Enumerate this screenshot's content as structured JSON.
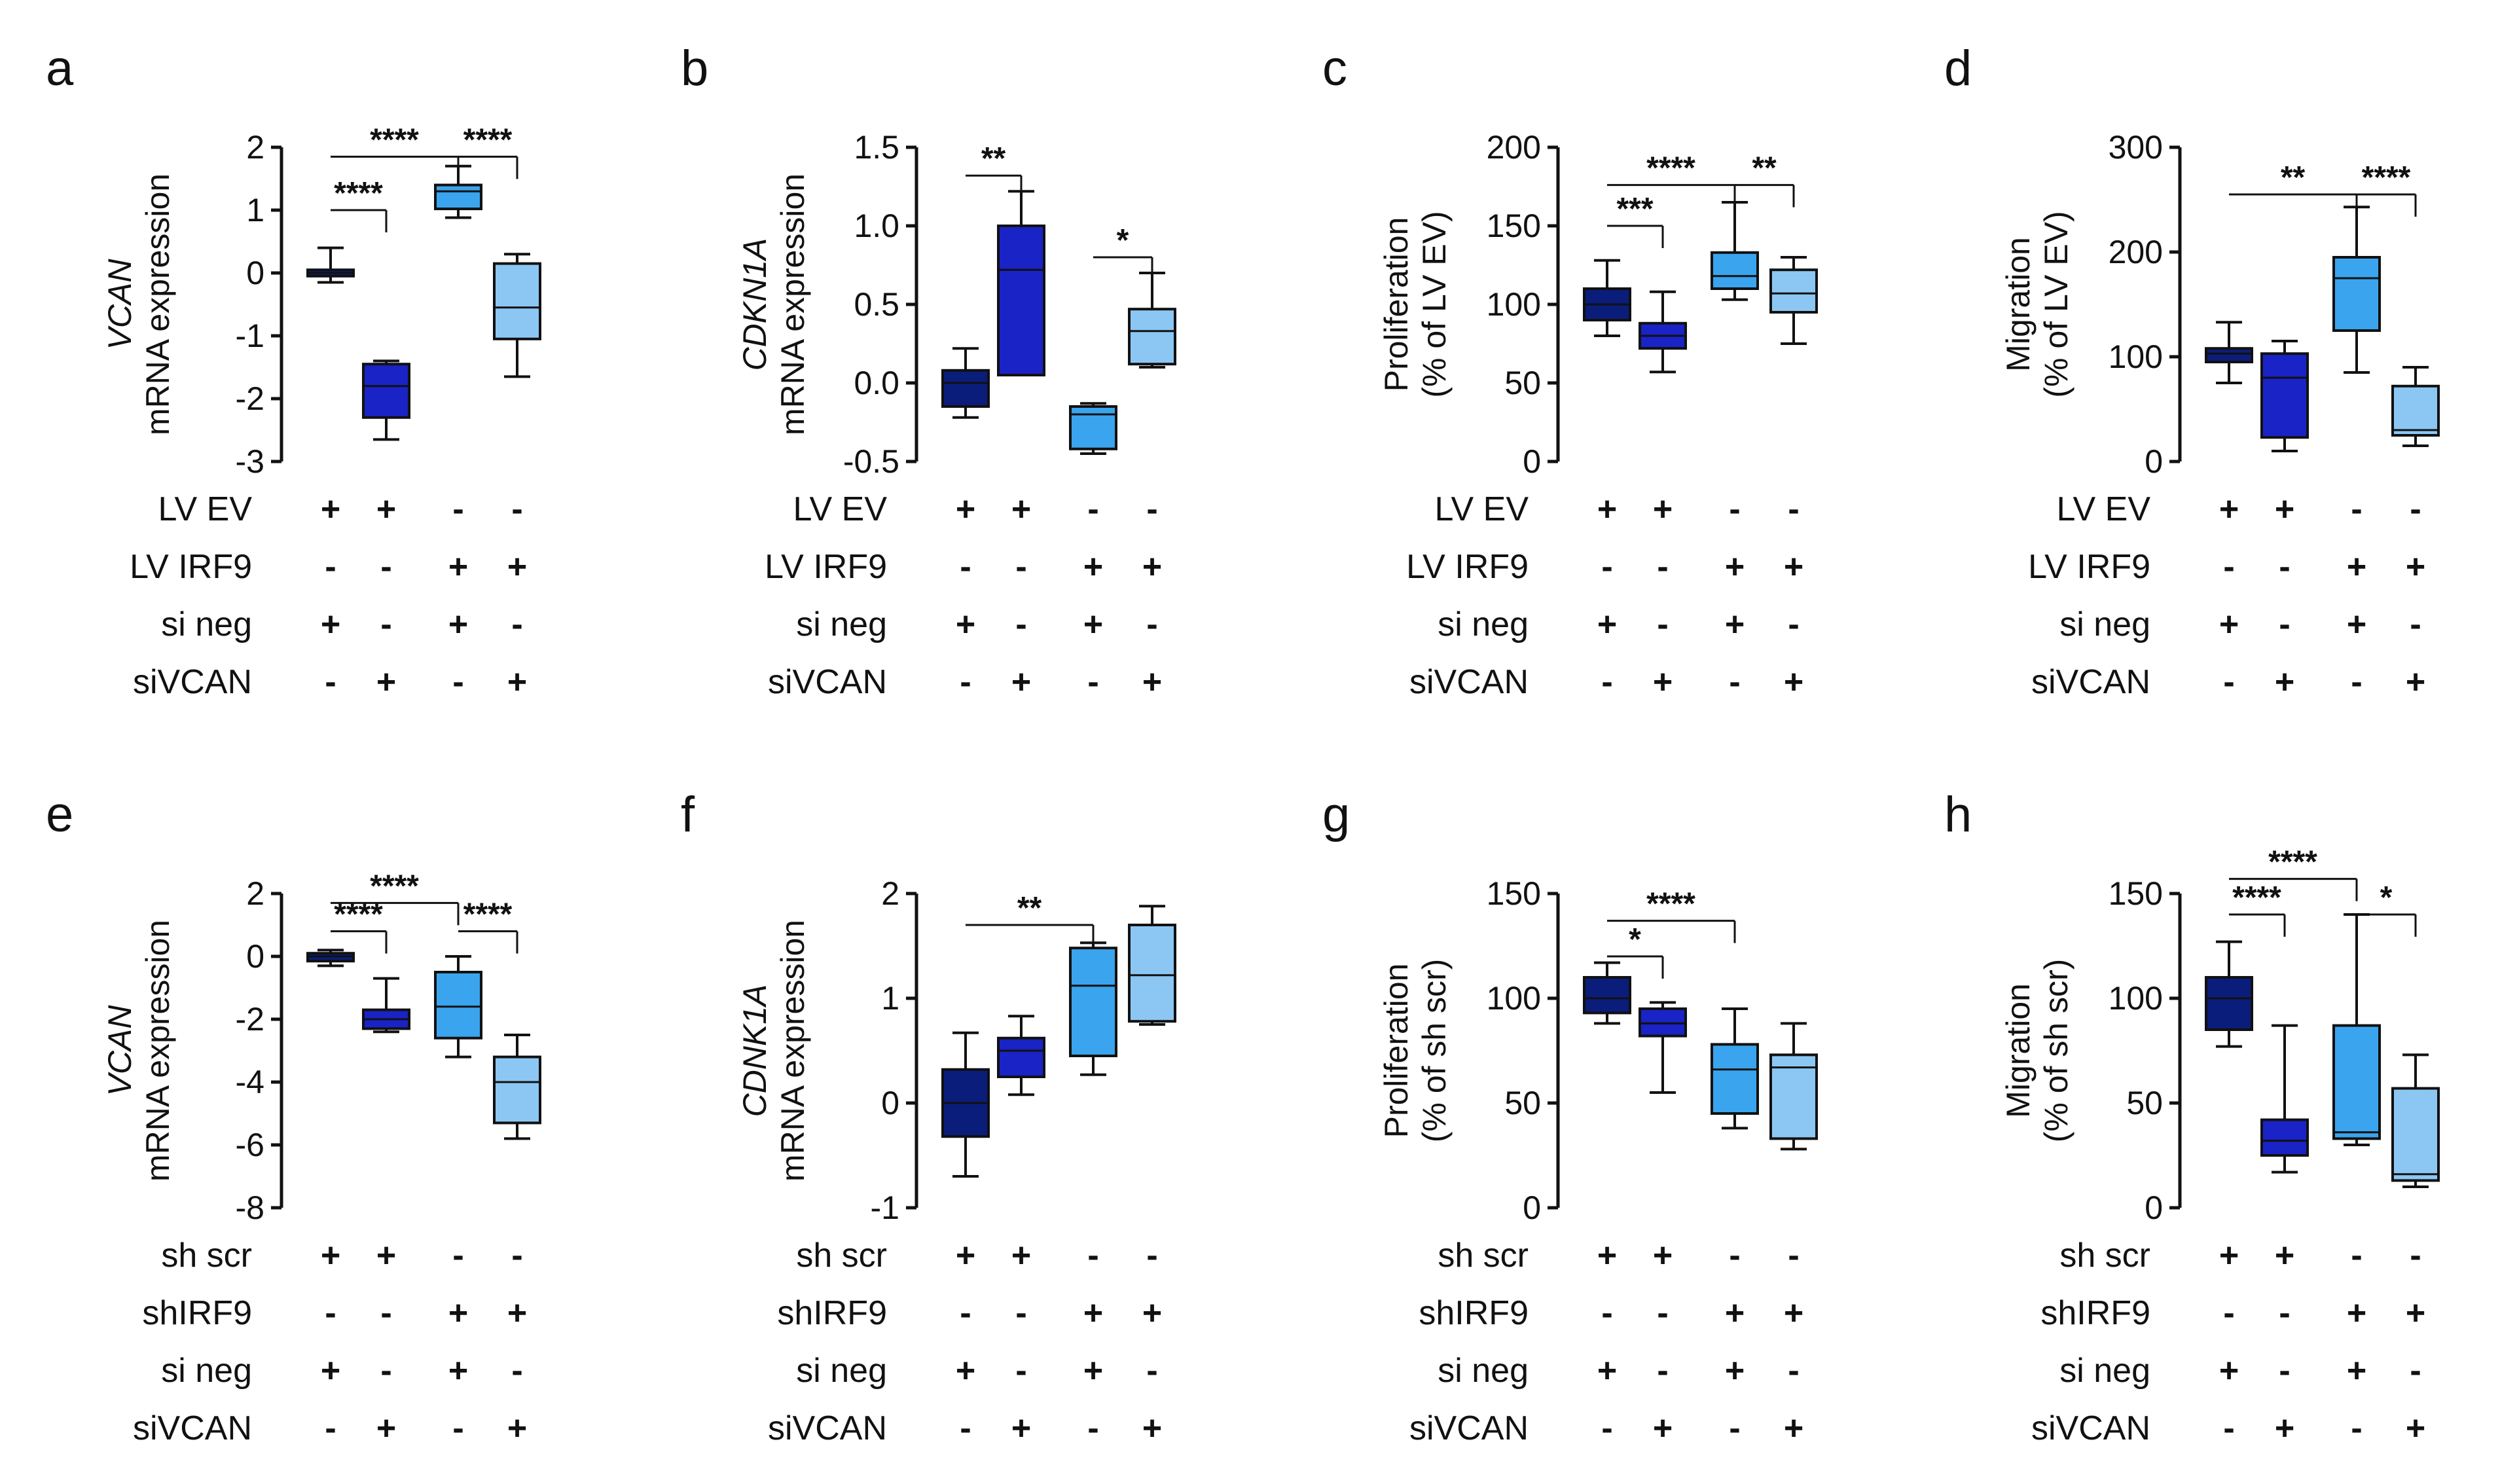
{
  "colors": {
    "c1": "#0b1d7a",
    "c2": "#1a23c6",
    "c3": "#3aa4ee",
    "c4": "#8cc7f4",
    "axis": "#111111"
  },
  "panels": [
    {
      "letter": "a",
      "ylabel": [
        "VCAN",
        "mRNA expression"
      ],
      "ylabel_italic_first": true,
      "ylim": [
        -3,
        2
      ],
      "ticks": [
        2,
        1,
        0,
        -1,
        -2,
        -3
      ],
      "tick_labels": [
        "2",
        "1",
        "0",
        "-1",
        "-2",
        "-3"
      ],
      "boxes": [
        {
          "min": -0.15,
          "q1": -0.05,
          "med": 0.0,
          "q3": 0.05,
          "max": 0.4
        },
        {
          "min": -2.65,
          "q1": -2.3,
          "med": -1.8,
          "q3": -1.45,
          "max": -1.4
        },
        {
          "min": 0.88,
          "q1": 1.02,
          "med": 1.3,
          "q3": 1.4,
          "max": 1.7
        },
        {
          "min": -1.65,
          "q1": -1.05,
          "med": -0.55,
          "q3": 0.15,
          "max": 0.3
        }
      ],
      "brackets": [
        {
          "from": 0,
          "to": 1,
          "level": 1.0,
          "label": "****"
        },
        {
          "from": 0,
          "to": 2,
          "level": 1.85,
          "label": "****"
        },
        {
          "from": 2,
          "to": 3,
          "level": 1.85,
          "label": "****"
        }
      ],
      "rows": [
        {
          "label": "LV EV",
          "signs": [
            "+",
            "+",
            "-",
            "-"
          ]
        },
        {
          "label": "LV IRF9",
          "signs": [
            "-",
            "-",
            "+",
            "+"
          ]
        },
        {
          "label": "si neg",
          "signs": [
            "+",
            "-",
            "+",
            "-"
          ]
        },
        {
          "label": "siVCAN",
          "signs": [
            "-",
            "+",
            "-",
            "+"
          ]
        }
      ]
    },
    {
      "letter": "b",
      "ylabel": [
        "CDKN1A",
        "mRNA expression"
      ],
      "ylabel_italic_first": true,
      "ylim": [
        -0.5,
        1.5
      ],
      "ticks": [
        1.5,
        1.0,
        0.5,
        0.0,
        -0.5
      ],
      "tick_labels": [
        "1.5",
        "1.0",
        "0.5",
        "0.0",
        "-0.5"
      ],
      "boxes": [
        {
          "min": -0.22,
          "q1": -0.15,
          "med": 0.0,
          "q3": 0.08,
          "max": 0.22
        },
        {
          "min": 0.05,
          "q1": 0.05,
          "med": 0.72,
          "q3": 1.0,
          "max": 1.22
        },
        {
          "min": -0.45,
          "q1": -0.42,
          "med": -0.2,
          "q3": -0.15,
          "max": -0.13
        },
        {
          "min": 0.1,
          "q1": 0.12,
          "med": 0.33,
          "q3": 0.47,
          "max": 0.7
        }
      ],
      "brackets": [
        {
          "from": 0,
          "to": 1,
          "level": 1.32,
          "label": "**"
        },
        {
          "from": 2,
          "to": 3,
          "level": 0.8,
          "label": "*"
        }
      ],
      "rows": [
        {
          "label": "LV EV",
          "signs": [
            "+",
            "+",
            "-",
            "-"
          ]
        },
        {
          "label": "LV IRF9",
          "signs": [
            "-",
            "-",
            "+",
            "+"
          ]
        },
        {
          "label": "si neg",
          "signs": [
            "+",
            "-",
            "+",
            "-"
          ]
        },
        {
          "label": "siVCAN",
          "signs": [
            "-",
            "+",
            "-",
            "+"
          ]
        }
      ]
    },
    {
      "letter": "c",
      "ylabel": [
        "Proliferation",
        "(% of LV EV)"
      ],
      "ylabel_italic_first": false,
      "ylim": [
        0,
        200
      ],
      "ticks": [
        200,
        150,
        100,
        50,
        0
      ],
      "tick_labels": [
        "200",
        "150",
        "100",
        "50",
        "0"
      ],
      "boxes": [
        {
          "min": 80,
          "q1": 90,
          "med": 100,
          "q3": 110,
          "max": 128
        },
        {
          "min": 57,
          "q1": 72,
          "med": 80,
          "q3": 88,
          "max": 108
        },
        {
          "min": 103,
          "q1": 110,
          "med": 118,
          "q3": 133,
          "max": 165
        },
        {
          "min": 75,
          "q1": 95,
          "med": 107,
          "q3": 122,
          "max": 130
        }
      ],
      "brackets": [
        {
          "from": 0,
          "to": 1,
          "level": 150,
          "label": "***"
        },
        {
          "from": 0,
          "to": 2,
          "level": 176,
          "label": "****"
        },
        {
          "from": 2,
          "to": 3,
          "level": 176,
          "label": "**"
        }
      ],
      "rows": [
        {
          "label": "LV EV",
          "signs": [
            "+",
            "+",
            "-",
            "-"
          ]
        },
        {
          "label": "LV IRF9",
          "signs": [
            "-",
            "-",
            "+",
            "+"
          ]
        },
        {
          "label": "si neg",
          "signs": [
            "+",
            "-",
            "+",
            "-"
          ]
        },
        {
          "label": "siVCAN",
          "signs": [
            "-",
            "+",
            "-",
            "+"
          ]
        }
      ]
    },
    {
      "letter": "d",
      "ylabel": [
        "Migration",
        "(% of  LV  EV)"
      ],
      "ylabel_italic_first": false,
      "ylim": [
        0,
        300
      ],
      "ticks": [
        300,
        200,
        100,
        0
      ],
      "tick_labels": [
        "300",
        "200",
        "100",
        "0"
      ],
      "boxes": [
        {
          "min": 75,
          "q1": 95,
          "med": 103,
          "q3": 108,
          "max": 133
        },
        {
          "min": 10,
          "q1": 23,
          "med": 80,
          "q3": 103,
          "max": 115
        },
        {
          "min": 85,
          "q1": 125,
          "med": 175,
          "q3": 195,
          "max": 243
        },
        {
          "min": 15,
          "q1": 25,
          "med": 30,
          "q3": 72,
          "max": 90
        }
      ],
      "brackets": [
        {
          "from": 0,
          "to": 2,
          "level": 255,
          "label": "**"
        },
        {
          "from": 2,
          "to": 3,
          "level": 255,
          "label": "****"
        }
      ],
      "rows": [
        {
          "label": "LV EV",
          "signs": [
            "+",
            "+",
            "-",
            "-"
          ]
        },
        {
          "label": "LV IRF9",
          "signs": [
            "-",
            "-",
            "+",
            "+"
          ]
        },
        {
          "label": "si neg",
          "signs": [
            "+",
            "-",
            "+",
            "-"
          ]
        },
        {
          "label": "siVCAN",
          "signs": [
            "-",
            "+",
            "-",
            "+"
          ]
        }
      ]
    },
    {
      "letter": "e",
      "ylabel": [
        "VCAN",
        "mRNA expression"
      ],
      "ylabel_italic_first": true,
      "ylim": [
        -8,
        2
      ],
      "ticks": [
        2,
        0,
        -2,
        -4,
        -6,
        -8
      ],
      "tick_labels": [
        "2",
        "0",
        "-2",
        "-4",
        "-6",
        "-8"
      ],
      "boxes": [
        {
          "min": -0.3,
          "q1": -0.15,
          "med": 0.0,
          "q3": 0.1,
          "max": 0.2
        },
        {
          "min": -2.4,
          "q1": -2.3,
          "med": -2.0,
          "q3": -1.7,
          "max": -0.7
        },
        {
          "min": -3.2,
          "q1": -2.6,
          "med": -1.6,
          "q3": -0.5,
          "max": 0.0
        },
        {
          "min": -5.8,
          "q1": -5.3,
          "med": -4.0,
          "q3": -3.2,
          "max": -2.5
        }
      ],
      "brackets": [
        {
          "from": 0,
          "to": 1,
          "level": 0.8,
          "label": "****"
        },
        {
          "from": 0,
          "to": 2,
          "level": 1.7,
          "label": "****"
        },
        {
          "from": 2,
          "to": 3,
          "level": 0.8,
          "label": "****"
        }
      ],
      "rows": [
        {
          "label": "sh scr",
          "signs": [
            "+",
            "+",
            "-",
            "-"
          ]
        },
        {
          "label": "shIRF9",
          "signs": [
            "-",
            "-",
            "+",
            "+"
          ]
        },
        {
          "label": "si neg",
          "signs": [
            "+",
            "-",
            "+",
            "-"
          ]
        },
        {
          "label": "siVCAN",
          "signs": [
            "-",
            "+",
            "-",
            "+"
          ]
        }
      ]
    },
    {
      "letter": "f",
      "ylabel": [
        "CDNK1A",
        "mRNA expression"
      ],
      "ylabel_italic_first": true,
      "ylim": [
        -1,
        2
      ],
      "ticks": [
        2,
        1,
        0,
        -1
      ],
      "tick_labels": [
        "2",
        "1",
        "0",
        "-1"
      ],
      "boxes": [
        {
          "min": -0.7,
          "q1": -0.32,
          "med": 0.0,
          "q3": 0.32,
          "max": 0.67
        },
        {
          "min": 0.08,
          "q1": 0.25,
          "med": 0.5,
          "q3": 0.62,
          "max": 0.83
        },
        {
          "min": 0.27,
          "q1": 0.45,
          "med": 1.12,
          "q3": 1.48,
          "max": 1.53
        },
        {
          "min": 0.75,
          "q1": 0.78,
          "med": 1.22,
          "q3": 1.7,
          "max": 1.88
        }
      ],
      "brackets": [
        {
          "from": 0,
          "to": 2,
          "level": 1.7,
          "label": "**"
        }
      ],
      "rows": [
        {
          "label": "sh scr",
          "signs": [
            "+",
            "+",
            "-",
            "-"
          ]
        },
        {
          "label": "shIRF9",
          "signs": [
            "-",
            "-",
            "+",
            "+"
          ]
        },
        {
          "label": "si neg",
          "signs": [
            "+",
            "-",
            "+",
            "-"
          ]
        },
        {
          "label": "siVCAN",
          "signs": [
            "-",
            "+",
            "-",
            "+"
          ]
        }
      ]
    },
    {
      "letter": "g",
      "ylabel": [
        "Proliferation",
        "(% of sh scr)"
      ],
      "ylabel_italic_first": false,
      "ylim": [
        0,
        150
      ],
      "ticks": [
        150,
        100,
        50,
        0
      ],
      "tick_labels": [
        "150",
        "100",
        "50",
        "0"
      ],
      "boxes": [
        {
          "min": 88,
          "q1": 93,
          "med": 100,
          "q3": 110,
          "max": 117
        },
        {
          "min": 55,
          "q1": 82,
          "med": 88,
          "q3": 95,
          "max": 98
        },
        {
          "min": 38,
          "q1": 45,
          "med": 66,
          "q3": 78,
          "max": 95
        },
        {
          "min": 28,
          "q1": 33,
          "med": 67,
          "q3": 73,
          "max": 88
        }
      ],
      "brackets": [
        {
          "from": 0,
          "to": 1,
          "level": 120,
          "label": "*"
        },
        {
          "from": 0,
          "to": 2,
          "level": 137,
          "label": "****"
        }
      ],
      "rows": [
        {
          "label": "sh scr",
          "signs": [
            "+",
            "+",
            "-",
            "-"
          ]
        },
        {
          "label": "shIRF9",
          "signs": [
            "-",
            "-",
            "+",
            "+"
          ]
        },
        {
          "label": "si neg",
          "signs": [
            "+",
            "-",
            "+",
            "-"
          ]
        },
        {
          "label": "siVCAN",
          "signs": [
            "-",
            "+",
            "-",
            "+"
          ]
        }
      ]
    },
    {
      "letter": "h",
      "ylabel": [
        "Migration",
        "(% of  sh scr)"
      ],
      "ylabel_italic_first": false,
      "ylim": [
        0,
        150
      ],
      "ticks": [
        150,
        100,
        50,
        0
      ],
      "tick_labels": [
        "150",
        "100",
        "50",
        "0"
      ],
      "boxes": [
        {
          "min": 77,
          "q1": 85,
          "med": 100,
          "q3": 110,
          "max": 127
        },
        {
          "min": 17,
          "q1": 25,
          "med": 32,
          "q3": 42,
          "max": 87
        },
        {
          "min": 30,
          "q1": 33,
          "med": 36,
          "q3": 87,
          "max": 140
        },
        {
          "min": 10,
          "q1": 13,
          "med": 16,
          "q3": 57,
          "max": 73
        }
      ],
      "brackets": [
        {
          "from": 0,
          "to": 1,
          "level": 140,
          "label": "****"
        },
        {
          "from": 0,
          "to": 2,
          "level": 157,
          "label": "****"
        },
        {
          "from": 2,
          "to": 3,
          "level": 140,
          "label": "*"
        }
      ],
      "rows": [
        {
          "label": "sh scr",
          "signs": [
            "+",
            "+",
            "-",
            "-"
          ]
        },
        {
          "label": "shIRF9",
          "signs": [
            "-",
            "-",
            "+",
            "+"
          ]
        },
        {
          "label": "si neg",
          "signs": [
            "+",
            "-",
            "+",
            "-"
          ]
        },
        {
          "label": "siVCAN",
          "signs": [
            "-",
            "+",
            "-",
            "+"
          ]
        }
      ]
    }
  ],
  "chart_data": [
    {
      "type": "boxplot",
      "panel": "a",
      "title": "",
      "ylabel": "VCAN mRNA expression",
      "ylim": [
        -3,
        2
      ],
      "categories": [
        "LV EV + si neg",
        "LV EV + siVCAN",
        "LV IRF9 + si neg",
        "LV IRF9 + siVCAN"
      ],
      "series": [
        {
          "name": "median",
          "values": [
            0.0,
            -1.8,
            1.3,
            -0.55
          ]
        }
      ]
    },
    {
      "type": "boxplot",
      "panel": "b",
      "title": "",
      "ylabel": "CDKN1A mRNA expression",
      "ylim": [
        -0.5,
        1.5
      ],
      "categories": [
        "LV EV + si neg",
        "LV EV + siVCAN",
        "LV IRF9 + si neg",
        "LV IRF9 + siVCAN"
      ],
      "series": [
        {
          "name": "median",
          "values": [
            0.0,
            0.72,
            -0.2,
            0.33
          ]
        }
      ]
    },
    {
      "type": "boxplot",
      "panel": "c",
      "title": "",
      "ylabel": "Proliferation (% of LV EV)",
      "ylim": [
        0,
        200
      ],
      "categories": [
        "LV EV + si neg",
        "LV EV + siVCAN",
        "LV IRF9 + si neg",
        "LV IRF9 + siVCAN"
      ],
      "series": [
        {
          "name": "median",
          "values": [
            100,
            80,
            118,
            107
          ]
        }
      ]
    },
    {
      "type": "boxplot",
      "panel": "d",
      "title": "",
      "ylabel": "Migration (% of LV EV)",
      "ylim": [
        0,
        300
      ],
      "categories": [
        "LV EV + si neg",
        "LV EV + siVCAN",
        "LV IRF9 + si neg",
        "LV IRF9 + siVCAN"
      ],
      "series": [
        {
          "name": "median",
          "values": [
            103,
            80,
            175,
            30
          ]
        }
      ]
    },
    {
      "type": "boxplot",
      "panel": "e",
      "title": "",
      "ylabel": "VCAN mRNA expression",
      "ylim": [
        -8,
        2
      ],
      "categories": [
        "sh scr + si neg",
        "sh scr + siVCAN",
        "shIRF9 + si neg",
        "shIRF9 + siVCAN"
      ],
      "series": [
        {
          "name": "median",
          "values": [
            0.0,
            -2.0,
            -1.6,
            -4.0
          ]
        }
      ]
    },
    {
      "type": "boxplot",
      "panel": "f",
      "title": "",
      "ylabel": "CDNK1A mRNA expression",
      "ylim": [
        -1,
        2
      ],
      "categories": [
        "sh scr + si neg",
        "sh scr + siVCAN",
        "shIRF9 + si neg",
        "shIRF9 + siVCAN"
      ],
      "series": [
        {
          "name": "median",
          "values": [
            0.0,
            0.5,
            1.12,
            1.22
          ]
        }
      ]
    },
    {
      "type": "boxplot",
      "panel": "g",
      "title": "",
      "ylabel": "Proliferation (% of sh scr)",
      "ylim": [
        0,
        150
      ],
      "categories": [
        "sh scr + si neg",
        "sh scr + siVCAN",
        "shIRF9 + si neg",
        "shIRF9 + siVCAN"
      ],
      "series": [
        {
          "name": "median",
          "values": [
            100,
            88,
            66,
            67
          ]
        }
      ]
    },
    {
      "type": "boxplot",
      "panel": "h",
      "title": "",
      "ylabel": "Migration (% of sh scr)",
      "ylim": [
        0,
        150
      ],
      "categories": [
        "sh scr + si neg",
        "sh scr + siVCAN",
        "shIRF9 + si neg",
        "shIRF9 + siVCAN"
      ],
      "series": [
        {
          "name": "median",
          "values": [
            100,
            32,
            36,
            16
          ]
        }
      ]
    }
  ]
}
